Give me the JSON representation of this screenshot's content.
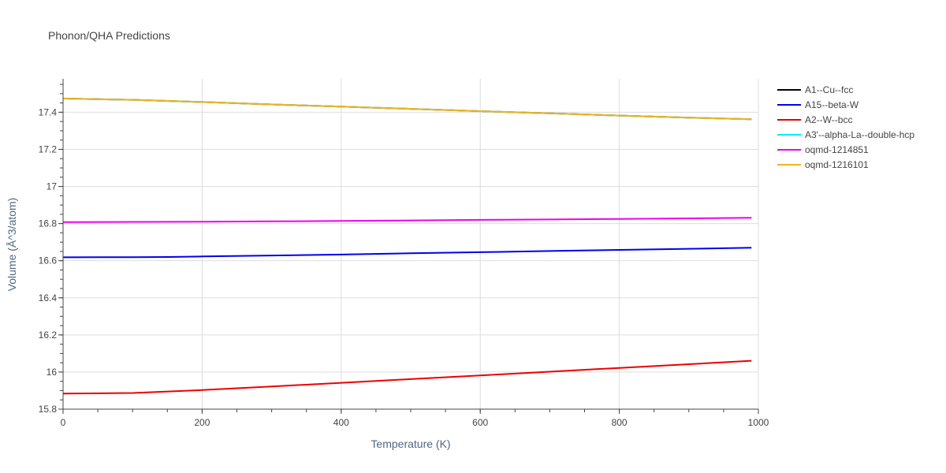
{
  "chart_data": {
    "type": "line",
    "title": "Phonon/QHA Predictions",
    "xlabel": "Temperature (K)",
    "ylabel": "Volume (Å^3/atom)",
    "xlim": [
      0,
      1000
    ],
    "ylim": [
      15.8,
      17.58
    ],
    "x_ticks": [
      0,
      200,
      400,
      600,
      800,
      1000
    ],
    "y_ticks": [
      15.8,
      16,
      16.2,
      16.4,
      16.6,
      16.8,
      17,
      17.2,
      17.4
    ],
    "x_tick_labels": [
      "0",
      "200",
      "400",
      "600",
      "800",
      "1000"
    ],
    "y_tick_labels": [
      "15.8",
      "16",
      "16.2",
      "16.4",
      "16.6",
      "16.8",
      "17",
      "17.2",
      "17.4"
    ],
    "grid": true,
    "legend_position": "top-right outside",
    "series": [
      {
        "name": "A1--Cu--fcc",
        "color": "#000000",
        "x": [
          0,
          100,
          200,
          300,
          400,
          500,
          600,
          700,
          800,
          900,
          990
        ],
        "y": [
          17.474,
          17.467,
          17.455,
          17.442,
          17.43,
          17.418,
          17.406,
          17.394,
          17.382,
          17.371,
          17.362
        ]
      },
      {
        "name": "A15--beta-W",
        "color": "#0000ee",
        "x": [
          0,
          100,
          150,
          200,
          300,
          400,
          500,
          600,
          700,
          800,
          900,
          990
        ],
        "y": [
          16.618,
          16.619,
          16.62,
          16.623,
          16.628,
          16.633,
          16.64,
          16.646,
          16.652,
          16.658,
          16.664,
          16.67
        ]
      },
      {
        "name": "A2--W--bcc",
        "color": "#ee0000",
        "x": [
          0,
          100,
          200,
          300,
          400,
          500,
          600,
          700,
          800,
          900,
          990
        ],
        "y": [
          15.884,
          15.887,
          15.903,
          15.922,
          15.942,
          15.962,
          15.982,
          16.002,
          16.022,
          16.042,
          16.061
        ]
      },
      {
        "name": "A3'--alpha-La--double-hcp",
        "color": "#00eeee",
        "x": [
          0,
          100,
          200,
          300,
          400,
          500,
          600,
          700,
          800,
          900,
          990
        ],
        "y": [
          17.474,
          17.467,
          17.455,
          17.442,
          17.43,
          17.418,
          17.406,
          17.394,
          17.382,
          17.371,
          17.362
        ]
      },
      {
        "name": "oqmd-1214851",
        "color": "#ee00ee",
        "x": [
          0,
          100,
          200,
          300,
          400,
          500,
          600,
          700,
          800,
          900,
          990
        ],
        "y": [
          16.808,
          16.809,
          16.81,
          16.812,
          16.814,
          16.817,
          16.82,
          16.822,
          16.825,
          16.828,
          16.831
        ]
      },
      {
        "name": "oqmd-1216101",
        "color": "#eeb422",
        "x": [
          0,
          100,
          200,
          300,
          400,
          500,
          600,
          700,
          800,
          900,
          990
        ],
        "y": [
          17.474,
          17.467,
          17.455,
          17.442,
          17.43,
          17.418,
          17.406,
          17.394,
          17.382,
          17.371,
          17.362
        ]
      }
    ]
  }
}
